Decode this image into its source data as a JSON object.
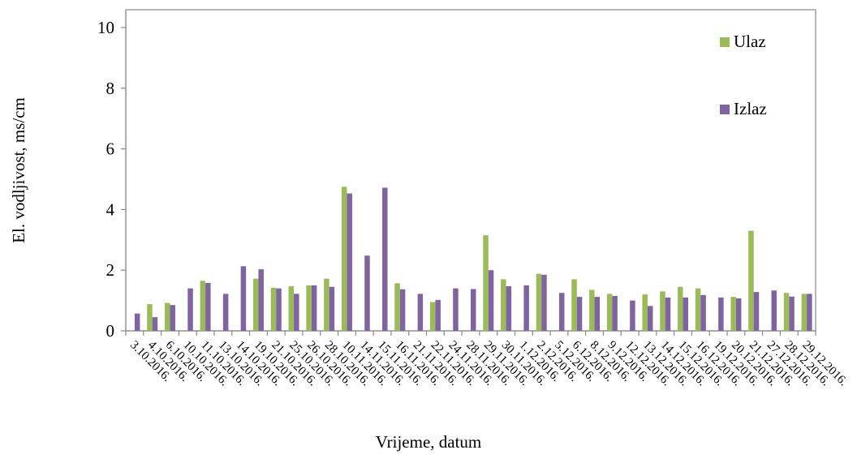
{
  "chart_data": {
    "type": "bar",
    "title": "",
    "xlabel": "Vrijeme, datum",
    "ylabel": "El. vodljivost, ms/cm",
    "ylim": [
      0,
      10
    ],
    "yticks": [
      0,
      2,
      4,
      6,
      8,
      10
    ],
    "grid": false,
    "legend_position": "top-right",
    "categories": [
      "3.10.2016.",
      "4.10.2016.",
      "6.10.2016.",
      "10.10.2016.",
      "11.10.2016.",
      "13.10.2016.",
      "14.10.2016.",
      "19.10.2016.",
      "21.10.2016.",
      "25.10.2016.",
      "26.10.2016.",
      "28.10.2016.",
      "10.11.2016.",
      "14.11.2016.",
      "15.11.2016.",
      "16.11.2016.",
      "21.11.2016.",
      "22.11.2016.",
      "24.11.2016.",
      "28.11.2016.",
      "29.11.2016.",
      "30.11.2016.",
      "1.12.2016.",
      "2.12.2016.",
      "5.12.2016.",
      "6.12.2016.",
      "8.12.2016.",
      "9.12.2016.",
      "12.12.2016.",
      "13.12.2016.",
      "14.12.2016.",
      "15.12.2016.",
      "16.12.2016.",
      "19.12.2016.",
      "20.12.2016.",
      "21.12.2016.",
      "27.12.2016.",
      "28.12.2016.",
      "29.12.2016."
    ],
    "series": [
      {
        "name": "Ulaz",
        "color": "#9BBB59",
        "values": [
          null,
          0.88,
          0.92,
          null,
          1.65,
          null,
          null,
          1.72,
          1.42,
          1.47,
          1.5,
          1.72,
          4.75,
          null,
          null,
          1.57,
          null,
          0.95,
          null,
          null,
          3.15,
          1.7,
          null,
          1.88,
          null,
          1.7,
          1.35,
          1.22,
          null,
          1.2,
          1.3,
          1.45,
          1.4,
          null,
          1.12,
          3.3,
          null,
          1.25,
          1.22
        ]
      },
      {
        "name": "Izlaz",
        "color": "#8064A2",
        "values": [
          0.57,
          0.45,
          0.85,
          1.4,
          1.58,
          1.22,
          2.13,
          2.03,
          1.4,
          1.22,
          1.5,
          1.45,
          4.53,
          2.48,
          4.72,
          1.37,
          1.22,
          1.02,
          1.4,
          1.38,
          2.0,
          1.47,
          1.5,
          1.85,
          1.25,
          1.12,
          1.12,
          1.15,
          1.0,
          0.82,
          1.1,
          1.1,
          1.18,
          1.1,
          1.07,
          1.28,
          1.33,
          1.13,
          1.22
        ]
      }
    ]
  }
}
